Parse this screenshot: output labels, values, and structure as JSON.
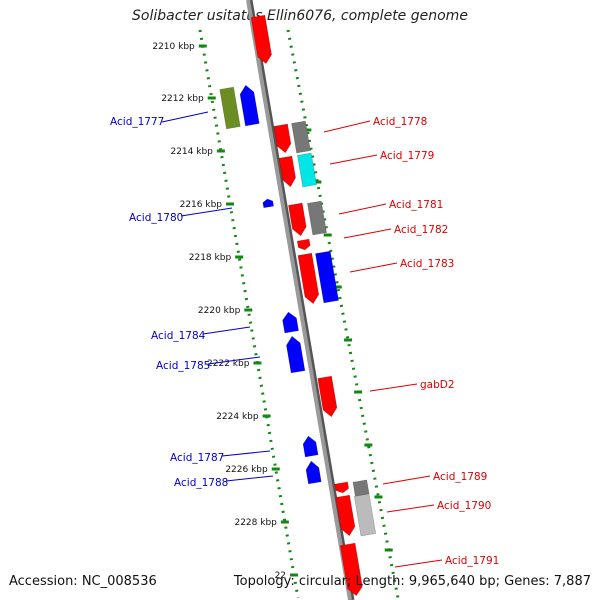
{
  "title": "Solibacter usitatus Ellin6076, complete genome",
  "accession": "Accession: NC_008536",
  "topology": "Topology: circular; Length: 9,965,640 bp; Genes: 7,887",
  "ticks": [
    "2210 kbp",
    "2212 kbp",
    "2214 kbp",
    "2216 kbp",
    "2218 kbp",
    "2220 kbp",
    "2222 kbp",
    "2224 kbp",
    "2226 kbp",
    "2228 kbp",
    "22"
  ],
  "genes_left": [
    "Acid_1777",
    "Acid_1780",
    "Acid_1784",
    "Acid_1785",
    "Acid_1787",
    "Acid_1788"
  ],
  "genes_right": [
    "Acid_1778",
    "Acid_1779",
    "Acid_1781",
    "Acid_1782",
    "Acid_1783",
    "gabD2",
    "Acid_1789",
    "Acid_1790",
    "Acid_1791"
  ],
  "colors": {
    "forward": "#ff0000",
    "reverse": "#0000ff",
    "axis": "#888888",
    "tick": "#118811",
    "label_left": "#0000cc",
    "label_right": "#dd0000",
    "olive": "#6b8e23",
    "cyan": "#00e5e5",
    "gray": "#777777"
  }
}
